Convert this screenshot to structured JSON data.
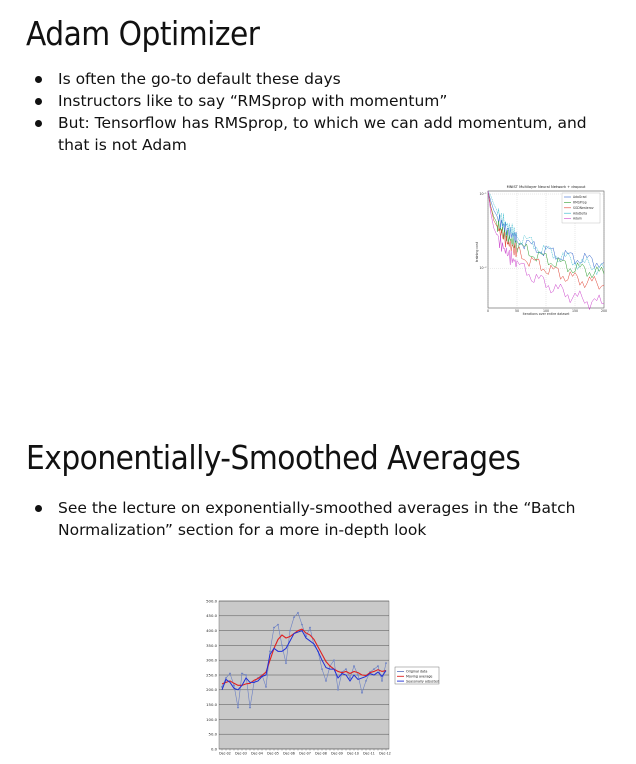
{
  "slide1": {
    "title": "Adam Optimizer",
    "bullets": [
      "Is often the go-to default these days",
      "Instructors like to say “RMSprop with momentum”",
      "But: Tensorflow has RMSprop, to which we can add momentum, and that is not Adam"
    ]
  },
  "slide2": {
    "title": "Exponentially-Smoothed Averages",
    "bullets": [
      "See the lecture on exponentially-smoothed averages in the “Batch Normalization” section for a more in-depth look"
    ]
  },
  "chart_data": [
    {
      "type": "line",
      "title": "MNIST Multilayer Neural Network + dropout",
      "xlabel": "iterations over entire dataset",
      "ylabel": "training cost",
      "xlim": [
        0,
        200
      ],
      "y_scale": "log",
      "ylim": [
        0.03,
        0.15
      ],
      "x_tick_labels": [
        "0",
        "50",
        "100",
        "150",
        "200"
      ],
      "y_tick_labels": [
        "10⁻¹",
        "10⁻²"
      ],
      "grid": true,
      "legend": "top-right",
      "x": [
        0,
        5,
        10,
        20,
        30,
        40,
        50,
        75,
        100,
        125,
        150,
        175,
        200
      ],
      "series": [
        {
          "name": "AdaGrad",
          "color": "#3366cc",
          "values": [
            0.15,
            0.13,
            0.115,
            0.1,
            0.09,
            0.083,
            0.078,
            0.07,
            0.066,
            0.062,
            0.06,
            0.058,
            0.056
          ]
        },
        {
          "name": "RMSProp",
          "color": "#2e9e2e",
          "values": [
            0.15,
            0.12,
            0.105,
            0.09,
            0.082,
            0.076,
            0.071,
            0.064,
            0.059,
            0.055,
            0.052,
            0.05,
            0.048
          ]
        },
        {
          "name": "SGDNesterov",
          "color": "#e04030",
          "values": [
            0.15,
            0.12,
            0.1,
            0.086,
            0.077,
            0.07,
            0.065,
            0.057,
            0.052,
            0.048,
            0.045,
            0.043,
            0.041
          ]
        },
        {
          "name": "AdaDelta",
          "color": "#29b5c9",
          "values": [
            0.15,
            0.14,
            0.125,
            0.108,
            0.096,
            0.088,
            0.082,
            0.073,
            0.066,
            0.061,
            0.057,
            0.054,
            0.052
          ]
        },
        {
          "name": "Adam",
          "color": "#cc44cc",
          "values": [
            0.15,
            0.11,
            0.09,
            0.075,
            0.066,
            0.06,
            0.055,
            0.047,
            0.042,
            0.038,
            0.035,
            0.033,
            0.032
          ]
        }
      ]
    },
    {
      "type": "line",
      "title": "",
      "xlabel": "",
      "ylabel": "",
      "ylim": [
        0,
        500
      ],
      "y_tick_labels": [
        "500.0",
        "450.0",
        "400.0",
        "350.0",
        "300.0",
        "250.0",
        "200.0",
        "150.0",
        "100.0",
        "50.0",
        "0.0"
      ],
      "x_tick_labels": [
        "Dec-02",
        "Dec-03",
        "Dec-04",
        "Dec-05",
        "Dec-06",
        "Dec-07",
        "Dec-08",
        "Dec-09",
        "Dec-10",
        "Dec-11",
        "Dec-12"
      ],
      "grid": true,
      "legend": "right",
      "series": [
        {
          "name": "Original data",
          "color": "#6a7fc4",
          "marker": "diamond",
          "values": [
            210,
            240,
            255,
            215,
            140,
            255,
            250,
            140,
            225,
            240,
            250,
            210,
            330,
            410,
            420,
            350,
            290,
            400,
            445,
            460,
            420,
            380,
            410,
            350,
            330,
            270,
            230,
            280,
            300,
            200,
            260,
            270,
            240,
            280,
            250,
            190,
            230,
            260,
            270,
            280,
            230,
            290
          ]
        },
        {
          "name": "Moving average",
          "color": "#e02020",
          "values": [
            220,
            225,
            230,
            222,
            215,
            215,
            220,
            222,
            232,
            238,
            248,
            260,
            300,
            340,
            370,
            385,
            375,
            380,
            390,
            400,
            405,
            392,
            385,
            370,
            345,
            320,
            295,
            280,
            270,
            262,
            258,
            262,
            255,
            262,
            258,
            250,
            248,
            258,
            262,
            268,
            262,
            265
          ]
        },
        {
          "name": "Seasonally adjusted",
          "color": "#1f2fd6",
          "values": [
            200,
            235,
            225,
            205,
            200,
            215,
            240,
            225,
            225,
            230,
            245,
            250,
            320,
            340,
            330,
            330,
            340,
            365,
            390,
            395,
            400,
            375,
            365,
            355,
            330,
            300,
            275,
            270,
            270,
            240,
            255,
            250,
            230,
            250,
            235,
            240,
            245,
            255,
            250,
            260,
            245,
            265
          ]
        }
      ]
    }
  ]
}
